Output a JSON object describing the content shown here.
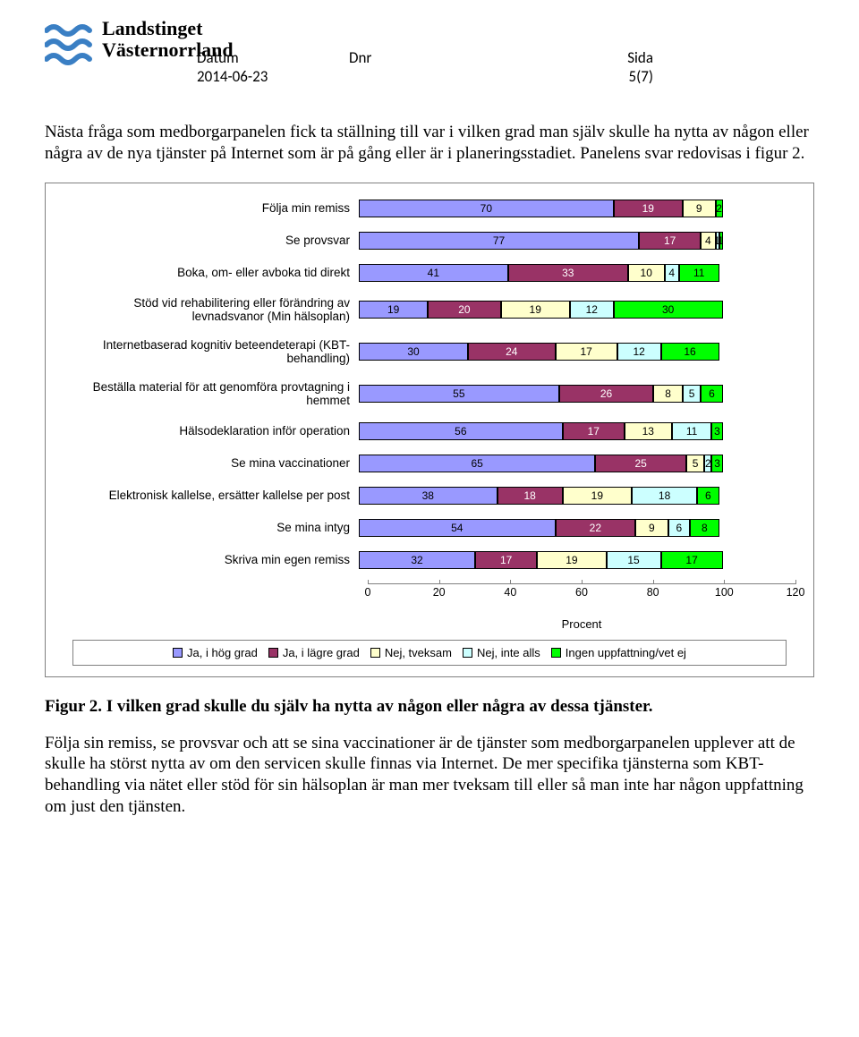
{
  "logo": {
    "line1": "Landstinget",
    "line2": "Västernorrland",
    "wave_color": "#3a7fc4"
  },
  "header": {
    "datum_label": "Datum",
    "datum_value": "2014-06-23",
    "dnr_label": "Dnr",
    "dnr_value": "",
    "sida_label": "Sida",
    "sida_value": "5(7)"
  },
  "intro_paragraph": "Nästa fråga som medborgarpanelen fick ta ställning till var i vilken grad man själv skulle ha nytta av någon eller några av de nya tjänster på Internet som är på gång eller är i planeringsstadiet. Panelens svar redovisas i figur 2.",
  "chart": {
    "type": "stacked_bar_horizontal",
    "x_axis_label": "Procent",
    "x_max": 120,
    "x_ticks": [
      0,
      20,
      40,
      60,
      80,
      100,
      120
    ],
    "colors": {
      "s1": "#9999ff",
      "s2": "#993366",
      "s3": "#ffffcc",
      "s4": "#ccffff",
      "s5": "#00ff00"
    },
    "legend": [
      {
        "key": "s1",
        "label": "Ja, i hög grad"
      },
      {
        "key": "s2",
        "label": "Ja, i lägre grad"
      },
      {
        "key": "s3",
        "label": "Nej, tveksam"
      },
      {
        "key": "s4",
        "label": "Nej, inte alls"
      },
      {
        "key": "s5",
        "label": "Ingen uppfattning/vet ej"
      }
    ],
    "rows": [
      {
        "label": "Följa min remiss",
        "values": [
          70,
          19,
          9,
          0,
          2
        ]
      },
      {
        "label": "Se provsvar",
        "values": [
          77,
          17,
          4,
          1,
          1
        ]
      },
      {
        "label": "Boka, om- eller avboka tid direkt",
        "values": [
          41,
          33,
          10,
          4,
          11
        ]
      },
      {
        "label": "Stöd vid rehabilitering eller förändring av levnadsvanor (Min hälsoplan)",
        "values": [
          19,
          20,
          19,
          12,
          30
        ]
      },
      {
        "label": "Internetbaserad kognitiv beteendeterapi (KBT-behandling)",
        "values": [
          30,
          24,
          17,
          12,
          16
        ]
      },
      {
        "label": "Beställa material för att genomföra provtagning i hemmet",
        "values": [
          55,
          26,
          8,
          5,
          6
        ]
      },
      {
        "label": "Hälsodeklaration inför operation",
        "values": [
          56,
          17,
          13,
          11,
          3
        ]
      },
      {
        "label": "Se mina vaccinationer",
        "values": [
          65,
          25,
          5,
          2,
          3
        ]
      },
      {
        "label": "Elektronisk kallelse, ersätter kallelse per post",
        "values": [
          38,
          18,
          19,
          18,
          6
        ]
      },
      {
        "label": "Se mina intyg",
        "values": [
          54,
          22,
          9,
          6,
          8
        ]
      },
      {
        "label": "Skriva min egen remiss",
        "values": [
          32,
          17,
          19,
          15,
          17
        ]
      }
    ]
  },
  "figure_caption_bold": "Figur 2. I vilken grad skulle du själv ha nytta av någon eller några av dessa tjänster.",
  "closing_paragraph": "Följa sin remiss, se provsvar och att se sina vaccinationer är de tjänster som medborgarpanelen upplever att de skulle ha störst nytta av om den servicen skulle finnas via Internet. De mer specifika tjänsterna som KBT-behandling via nätet eller stöd för sin hälsoplan är man mer tveksam till eller så man inte har någon uppfattning om just den tjänsten."
}
